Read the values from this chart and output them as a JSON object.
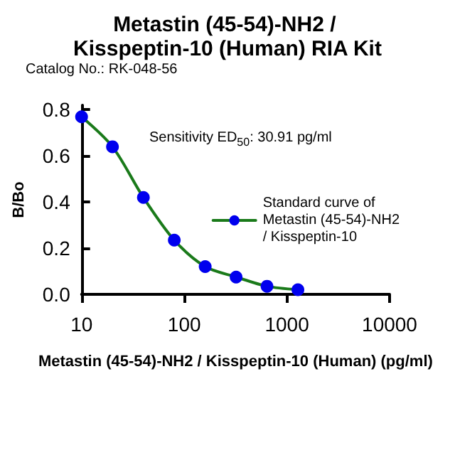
{
  "chart_data": {
    "type": "line",
    "title": "Metastin (45-54)-NH2 / Kisspeptin-10 (Human) RIA Kit",
    "xlabel": "Metastin (45-54)-NH2 / Kisspeptin-10 (Human) (pg/ml)",
    "ylabel": "B/Bo",
    "annotations": [
      "Catalog No.: RK-048-56",
      "Sensitivity ED$_{50}$: 30.91 pg/ml"
    ],
    "x": [
      10,
      20,
      40,
      80,
      160,
      320,
      640,
      1280
    ],
    "series": [
      {
        "name": "Standard curve of Metastin (45-54)-NH2 / Kisspeptin-10",
        "color": "#1a7a1a",
        "values": [
          0.77,
          0.64,
          0.42,
          0.235,
          0.12,
          0.075,
          0.035,
          0.02
        ]
      }
    ],
    "log": "x",
    "xlim": [
      10,
      10000
    ],
    "xticks": [
      10,
      100,
      1000,
      10000
    ],
    "ylim": [
      0,
      0.82
    ],
    "yticks": [
      {
        "value": 0,
        "label": "0.0"
      },
      0.2,
      0.4,
      0.6,
      0.8
    ],
    "grid": false,
    "legend": "right",
    "marker": "circle",
    "line_style": "solid"
  }
}
